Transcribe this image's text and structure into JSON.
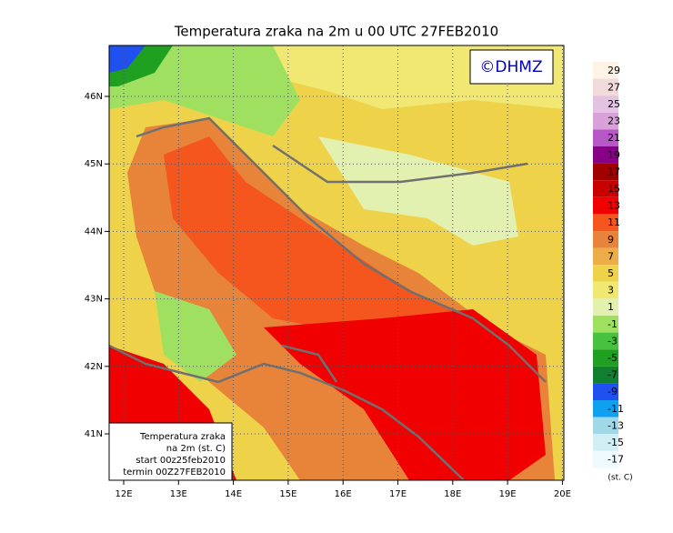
{
  "title": "Temperatura zraka na 2m u 00 UTC 27FEB2010",
  "copyright": "©DHMZ",
  "lon_labels": [
    "12E",
    "13E",
    "14E",
    "15E",
    "16E",
    "17E",
    "18E",
    "19E",
    "20E"
  ],
  "lat_labels": [
    "46N",
    "45N",
    "44N",
    "43N",
    "42N",
    "41N"
  ],
  "colorbar": {
    "labels": [
      "29",
      "27",
      "25",
      "23",
      "21",
      "19",
      "17",
      "15",
      "13",
      "11",
      "9",
      "7",
      "5",
      "3",
      "1",
      "-1",
      "-3",
      "-5",
      "-7",
      "-9",
      "-11",
      "-13",
      "-15",
      "-17"
    ],
    "colors": [
      "#fff3e6",
      "#f0dada",
      "#e4c2e2",
      "#d8a2d8",
      "#b858c8",
      "#880088",
      "#a00000",
      "#c80000",
      "#f00000",
      "#f5561e",
      "#e8843a",
      "#ecac48",
      "#eed24a",
      "#f0e872",
      "#e2f0b0",
      "#a0e060",
      "#48c040",
      "#20a020",
      "#108030",
      "#2050f0",
      "#10a0f0",
      "#a0d8e8",
      "#d0eef4",
      "#eefaff",
      "#ffffff"
    ],
    "unit": "(st. C)"
  },
  "inset": [
    "Temperatura zraka",
    "na 2m (st. C)",
    "start 00z25feb2010",
    "termin 00Z27FEB2010"
  ]
}
